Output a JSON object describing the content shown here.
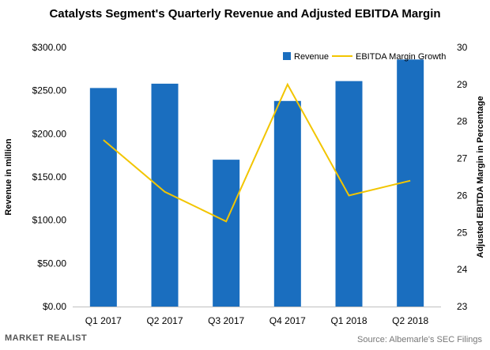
{
  "chart_data": {
    "type": "bar",
    "title": "Catalysts Segment's Quarterly Revenue and Adjusted EBITDA Margin",
    "categories": [
      "Q1 2017",
      "Q2 2017",
      "Q3 2017",
      "Q4 2017",
      "Q1 2018",
      "Q2 2018"
    ],
    "series": [
      {
        "name": "Revenue",
        "type": "bar",
        "axis": "left",
        "color": "#1a6ebf",
        "values": [
          253,
          258,
          170,
          238,
          261,
          286
        ]
      },
      {
        "name": "EBITDA Margin Growth",
        "type": "line",
        "axis": "right",
        "color": "#f2c500",
        "values": [
          27.5,
          26.1,
          25.3,
          29.0,
          26.0,
          26.4
        ]
      }
    ],
    "ylabel": "Revenue in million",
    "ylim": [
      0,
      300
    ],
    "yticks": [
      "$0.00",
      "$50.00",
      "$100.00",
      "$150.00",
      "$200.00",
      "$250.00",
      "$300.00"
    ],
    "y2label": "Adjusted EBITDA Margin in Percentage",
    "y2lim": [
      23,
      30
    ],
    "y2ticks": [
      "23",
      "24",
      "25",
      "26",
      "27",
      "28",
      "29",
      "30"
    ],
    "legend_position": "top-right",
    "grid": false
  },
  "footer": {
    "brand": "MARKET REALIST",
    "source": "Source: Albemarle's SEC Filings"
  }
}
